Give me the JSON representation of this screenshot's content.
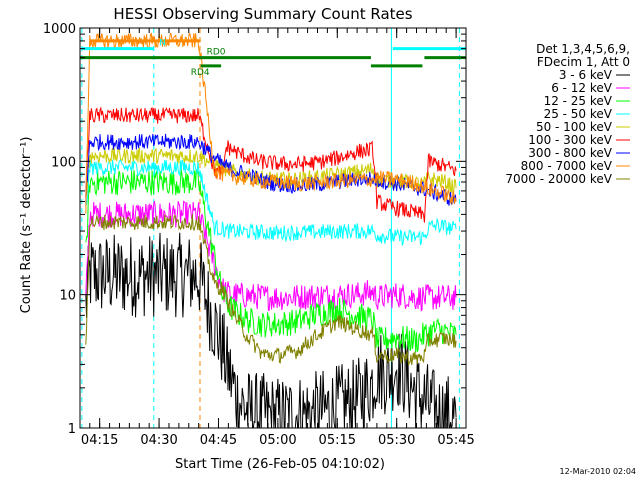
{
  "chart_data": {
    "type": "line",
    "title": "HESSI Observing Summary Count Rates",
    "xlabel": "Start Time (26-Feb-05 04:10:02)",
    "ylabel": "Count Rate (s⁻¹ detector⁻¹)",
    "x_axis_type": "time",
    "x_range": [
      "04:10:02",
      "05:47:30"
    ],
    "x_ticks": [
      {
        "t": "04:15",
        "label": "04:15"
      },
      {
        "t": "04:30",
        "label": "04:30"
      },
      {
        "t": "04:45",
        "label": "04:45"
      },
      {
        "t": "05:00",
        "label": "05:00"
      },
      {
        "t": "05:15",
        "label": "05:15"
      },
      {
        "t": "05:30",
        "label": "05:30"
      },
      {
        "t": "05:45",
        "label": "05:45"
      }
    ],
    "y_scale": "log",
    "ylim": [
      1,
      1000
    ],
    "y_ticks": [
      {
        "v": 1,
        "label": "1"
      },
      {
        "v": 10,
        "label": "10"
      },
      {
        "v": 100,
        "label": "100"
      },
      {
        "v": 1000,
        "label": "1000"
      }
    ],
    "legend_header": [
      "Det 1,3,4,5,6,9,",
      "FDecim 1, Att 0"
    ],
    "legend_position": "right",
    "series": [
      {
        "name": "3 - 6 keV",
        "color": "#000000",
        "points": [
          [
            "04:11:30",
            8
          ],
          [
            "04:12:30",
            14
          ],
          [
            "04:40",
            14
          ],
          [
            "04:46",
            4
          ],
          [
            "04:47",
            3
          ],
          [
            "04:50",
            1.6
          ],
          [
            "04:53",
            1.3
          ],
          [
            "05:00",
            1.2
          ],
          [
            "05:10",
            1.3
          ],
          [
            "05:20",
            1.6
          ],
          [
            "05:24",
            2.2
          ],
          [
            "05:25",
            2.8
          ],
          [
            "05:28",
            2.5
          ],
          [
            "05:30",
            3
          ],
          [
            "05:34",
            2
          ],
          [
            "05:38",
            1.5
          ],
          [
            "05:40",
            1.3
          ],
          [
            "05:45",
            1.2
          ]
        ]
      },
      {
        "name": "6 - 12 keV",
        "color": "#ff00ff",
        "points": [
          [
            "04:11:30",
            9
          ],
          [
            "04:12:30",
            40
          ],
          [
            "04:40",
            40
          ],
          [
            "04:46",
            11
          ],
          [
            "04:48",
            10
          ],
          [
            "05:00",
            9.5
          ],
          [
            "05:10",
            9.8
          ],
          [
            "05:20",
            10
          ],
          [
            "05:24",
            10.5
          ],
          [
            "05:25",
            9.5
          ],
          [
            "05:30",
            10
          ],
          [
            "05:35",
            9.5
          ],
          [
            "05:40",
            9.5
          ],
          [
            "05:45",
            9.5
          ]
        ]
      },
      {
        "name": "12 - 25 keV",
        "color": "#00ff00",
        "points": [
          [
            "04:11:30",
            20
          ],
          [
            "04:12:30",
            70
          ],
          [
            "04:40",
            70
          ],
          [
            "04:46",
            10
          ],
          [
            "04:48",
            8
          ],
          [
            "04:52",
            6.5
          ],
          [
            "04:56",
            6
          ],
          [
            "05:00",
            6
          ],
          [
            "05:05",
            6.3
          ],
          [
            "05:10",
            7.2
          ],
          [
            "05:15",
            7.8
          ],
          [
            "05:20",
            7
          ],
          [
            "05:24",
            6.5
          ],
          [
            "05:25",
            4.5
          ],
          [
            "05:30",
            4.8
          ],
          [
            "05:35",
            4.5
          ],
          [
            "05:37",
            5
          ],
          [
            "05:40",
            5.5
          ],
          [
            "05:45",
            5
          ]
        ]
      },
      {
        "name": "25 - 50 keV",
        "color": "#00ffff",
        "points": [
          [
            "04:11:30",
            42
          ],
          [
            "04:12:30",
            90
          ],
          [
            "04:40",
            90
          ],
          [
            "04:44",
            32
          ],
          [
            "04:46",
            31
          ],
          [
            "04:47",
            30
          ],
          [
            "05:00",
            29
          ],
          [
            "05:10",
            29.5
          ],
          [
            "05:20",
            30
          ],
          [
            "05:24",
            30
          ],
          [
            "05:25",
            28
          ],
          [
            "05:30",
            27
          ],
          [
            "05:37",
            27
          ],
          [
            "05:38",
            32
          ],
          [
            "05:40",
            33
          ],
          [
            "05:45",
            31
          ]
        ]
      },
      {
        "name": "50 - 100 keV",
        "color": "#cccc00",
        "points": [
          [
            "04:11:30",
            55
          ],
          [
            "04:12:30",
            110
          ],
          [
            "04:40",
            110
          ],
          [
            "04:44",
            95
          ],
          [
            "04:46",
            90
          ],
          [
            "04:48",
            85
          ],
          [
            "04:52",
            78
          ],
          [
            "04:58",
            73
          ],
          [
            "05:04",
            73
          ],
          [
            "05:10",
            76
          ],
          [
            "05:16",
            80
          ],
          [
            "05:22",
            85
          ],
          [
            "05:24",
            88
          ],
          [
            "05:25",
            72
          ],
          [
            "05:28",
            72
          ],
          [
            "05:32",
            70
          ],
          [
            "05:36",
            68
          ],
          [
            "05:37",
            68
          ],
          [
            "05:38",
            75
          ],
          [
            "05:42",
            70
          ],
          [
            "05:45",
            63
          ]
        ]
      },
      {
        "name": "100 - 300 keV",
        "color": "#ff0000",
        "points": [
          [
            "04:11:30",
            60
          ],
          [
            "04:12:30",
            220
          ],
          [
            "04:40",
            220
          ],
          [
            "04:44",
            85
          ],
          [
            "04:46",
            80
          ],
          [
            "04:47",
            130
          ],
          [
            "04:50",
            115
          ],
          [
            "04:55",
            100
          ],
          [
            "05:00",
            96
          ],
          [
            "05:05",
            95
          ],
          [
            "05:10",
            98
          ],
          [
            "05:15",
            106
          ],
          [
            "05:20",
            118
          ],
          [
            "05:24",
            123
          ],
          [
            "05:25",
            50
          ],
          [
            "05:28",
            46
          ],
          [
            "05:32",
            43
          ],
          [
            "05:36",
            40
          ],
          [
            "05:37",
            39
          ],
          [
            "05:38",
            100
          ],
          [
            "05:42",
            92
          ],
          [
            "05:45",
            85
          ]
        ]
      },
      {
        "name": "300 - 800 keV",
        "color": "#0000ff",
        "points": [
          [
            "04:11:30",
            50
          ],
          [
            "04:12:30",
            140
          ],
          [
            "04:40",
            140
          ],
          [
            "04:44",
            105
          ],
          [
            "04:46",
            95
          ],
          [
            "04:48",
            88
          ],
          [
            "04:52",
            80
          ],
          [
            "04:56",
            72
          ],
          [
            "05:00",
            67
          ],
          [
            "05:05",
            66
          ],
          [
            "05:10",
            67
          ],
          [
            "05:15",
            70
          ],
          [
            "05:20",
            73
          ],
          [
            "05:24",
            74
          ],
          [
            "05:25",
            72
          ],
          [
            "05:30",
            68
          ],
          [
            "05:35",
            63
          ],
          [
            "05:37",
            62
          ],
          [
            "05:38",
            60
          ],
          [
            "05:42",
            55
          ],
          [
            "05:45",
            50
          ]
        ]
      },
      {
        "name": "800 - 7000 keV",
        "color": "#ff8800",
        "points": [
          [
            "04:11:30",
            45
          ],
          [
            "04:12:30",
            800
          ],
          [
            "04:40",
            800
          ],
          [
            "04:44",
            85
          ],
          [
            "04:46",
            80
          ],
          [
            "04:48",
            78
          ],
          [
            "04:52",
            74
          ],
          [
            "04:56",
            71
          ],
          [
            "05:00",
            70
          ],
          [
            "05:05",
            68
          ],
          [
            "05:10",
            69
          ],
          [
            "05:15",
            71
          ],
          [
            "05:20",
            73
          ],
          [
            "05:24",
            73
          ],
          [
            "05:25",
            75
          ],
          [
            "05:30",
            73
          ],
          [
            "05:35",
            68
          ],
          [
            "05:37",
            64
          ],
          [
            "05:38",
            62
          ],
          [
            "05:42",
            57
          ],
          [
            "05:45",
            50
          ]
        ]
      },
      {
        "name": "7000 - 20000 keV",
        "color": "#808000",
        "points": [
          [
            "04:11:30",
            4
          ],
          [
            "04:12:30",
            35
          ],
          [
            "04:40",
            35
          ],
          [
            "04:44",
            12
          ],
          [
            "04:46",
            11
          ],
          [
            "04:48",
            8
          ],
          [
            "04:52",
            5
          ],
          [
            "04:56",
            3.6
          ],
          [
            "05:00",
            3.5
          ],
          [
            "05:05",
            3.8
          ],
          [
            "05:10",
            5
          ],
          [
            "05:15",
            6.3
          ],
          [
            "05:20",
            5.5
          ],
          [
            "05:24",
            5
          ],
          [
            "05:25",
            3.5
          ],
          [
            "05:30",
            3.5
          ],
          [
            "05:35",
            3.3
          ],
          [
            "05:37",
            3.5
          ],
          [
            "05:38",
            4.5
          ],
          [
            "05:42",
            4.7
          ],
          [
            "05:45",
            4.5
          ]
        ]
      }
    ],
    "vertical_markers": [
      {
        "t": "04:10:30",
        "color": "#00ffff",
        "style": "dashed"
      },
      {
        "t": "04:28:40",
        "color": "#00ffff",
        "style": "dashed"
      },
      {
        "t": "04:40:20",
        "color": "#ff8800",
        "style": "dashed"
      },
      {
        "t": "05:28:40",
        "color": "#00ffff",
        "style": "solid"
      },
      {
        "t": "05:45:50",
        "color": "#00ffff",
        "style": "dashed"
      }
    ],
    "status_bars": [
      {
        "label": "",
        "color": "#ff8800",
        "y": 800,
        "segments": [
          [
            "04:12:40",
            "04:40:30"
          ]
        ]
      },
      {
        "label": "N",
        "color": "#00ffff",
        "y": 700,
        "segments": [
          [
            "04:10:30",
            "04:28:40"
          ],
          [
            "05:29:00",
            "05:47:30"
          ]
        ]
      },
      {
        "label": "RD0",
        "color": "#008000",
        "y": 600,
        "segments": [
          [
            "04:10:02",
            "05:23:30"
          ],
          [
            "05:37:00",
            "05:47:30"
          ]
        ]
      },
      {
        "label": "RD4",
        "color": "#008000",
        "y": 520,
        "segments": [
          [
            "04:40:30",
            "04:45:40"
          ],
          [
            "05:23:30",
            "05:36:30"
          ]
        ]
      }
    ],
    "grid": false
  },
  "footer": {
    "timestamp": "12-Mar-2010 02:04"
  }
}
